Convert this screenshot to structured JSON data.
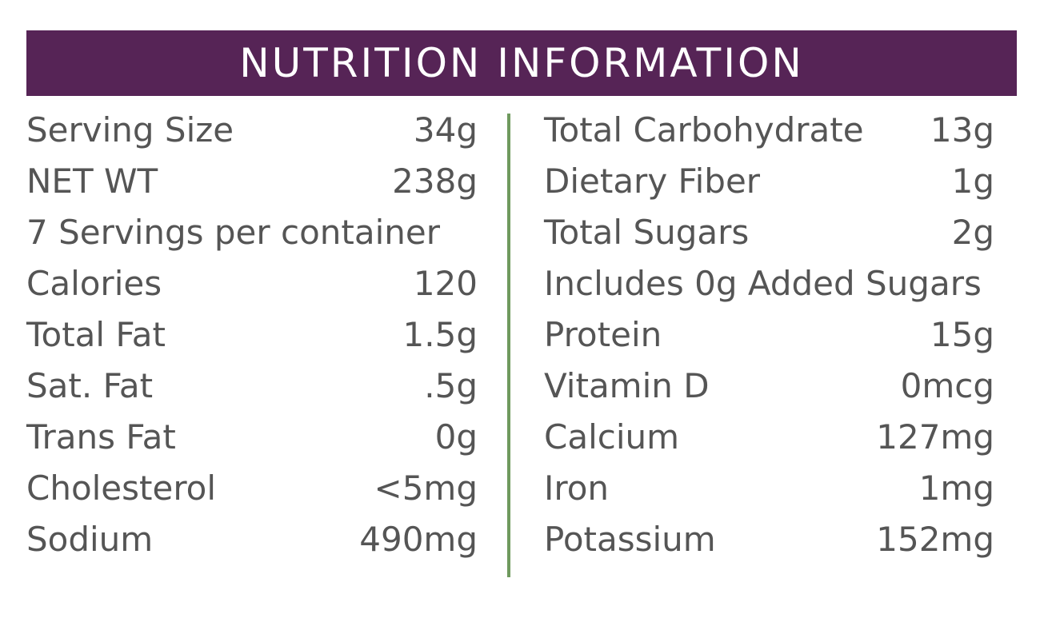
{
  "title": "NUTRITION INFORMATION",
  "colors": {
    "header_bg": "#562456",
    "divider": "#6f9a5e",
    "text": "#555555"
  },
  "left": [
    {
      "label": "Serving Size",
      "value": "34g"
    },
    {
      "label": "NET WT",
      "value": "238g"
    },
    {
      "label": "7 Servings per container",
      "value": ""
    },
    {
      "label": "Calories",
      "value": "120"
    },
    {
      "label": "Total Fat",
      "value": "1.5g"
    },
    {
      "label": "Sat. Fat",
      "value": ".5g"
    },
    {
      "label": "Trans Fat",
      "value": "0g"
    },
    {
      "label": "Cholesterol",
      "value": "<5mg"
    },
    {
      "label": "Sodium",
      "value": "490mg"
    }
  ],
  "right": [
    {
      "label": "Total Carbohydrate",
      "value": "13g"
    },
    {
      "label": "Dietary Fiber",
      "value": "1g"
    },
    {
      "label": "Total Sugars",
      "value": "2g"
    },
    {
      "label": "Includes 0g Added Sugars",
      "value": ""
    },
    {
      "label": "Protein",
      "value": "15g"
    },
    {
      "label": "Vitamin D",
      "value": "0mcg"
    },
    {
      "label": "Calcium",
      "value": "127mg"
    },
    {
      "label": "Iron",
      "value": "1mg"
    },
    {
      "label": "Potassium",
      "value": "152mg"
    }
  ]
}
